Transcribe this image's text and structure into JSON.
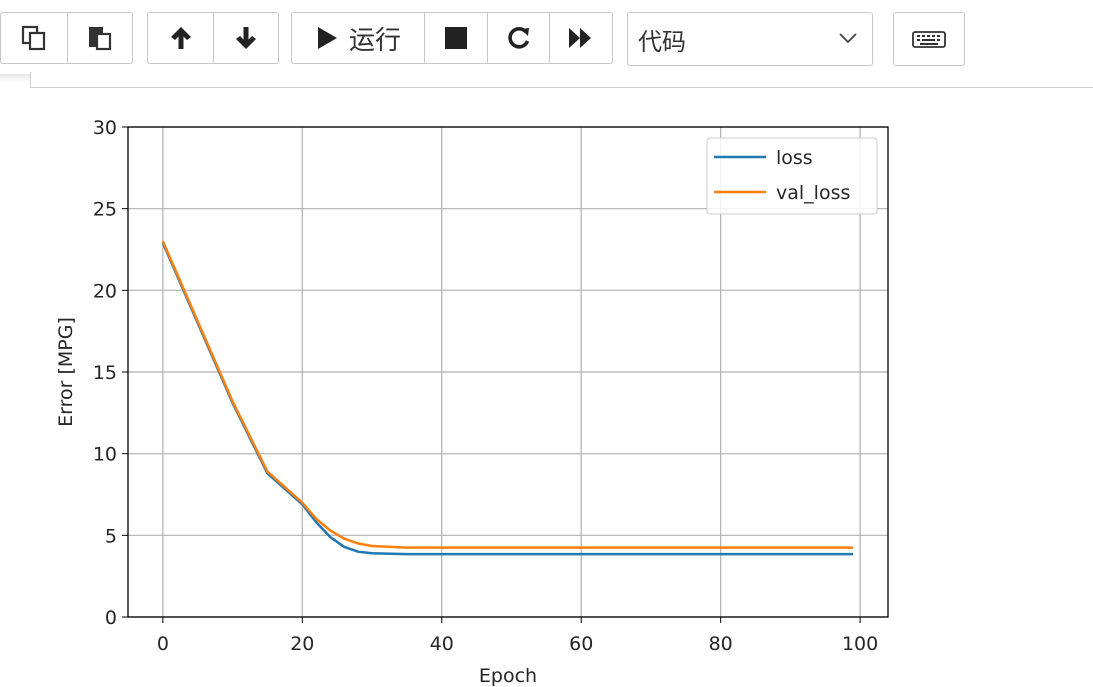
{
  "toolbar": {
    "copy_icon": "copy-icon",
    "paste_icon": "paste-icon",
    "up_icon": "arrow-up-icon",
    "down_icon": "arrow-down-icon",
    "run_icon": "play-icon",
    "run_label": "运行",
    "stop_icon": "stop-icon",
    "restart_icon": "restart-icon",
    "fast_forward_icon": "fast-forward-icon",
    "cell_type_value": "代码",
    "keyboard_icon": "keyboard-icon"
  },
  "chart_data": {
    "type": "line",
    "xlabel": "Epoch",
    "ylabel": "Error [MPG]",
    "xlim": [
      -5,
      104
    ],
    "ylim": [
      0,
      30
    ],
    "xticks": [
      0,
      20,
      40,
      60,
      80,
      100
    ],
    "yticks": [
      0,
      5,
      10,
      15,
      20,
      25,
      30
    ],
    "grid": true,
    "legend_position": "top-right",
    "x": [
      0,
      5,
      10,
      15,
      20,
      22,
      24,
      26,
      28,
      30,
      35,
      40,
      50,
      60,
      70,
      80,
      90,
      99
    ],
    "series": [
      {
        "name": "loss",
        "color": "#1f77b4",
        "values": [
          22.9,
          18.0,
          13.1,
          8.8,
          6.9,
          5.8,
          4.9,
          4.3,
          4.0,
          3.9,
          3.85,
          3.85,
          3.85,
          3.85,
          3.85,
          3.85,
          3.85,
          3.85
        ]
      },
      {
        "name": "val_loss",
        "color": "#ff7f0e",
        "values": [
          23.0,
          18.1,
          13.2,
          8.9,
          7.0,
          6.0,
          5.3,
          4.8,
          4.5,
          4.35,
          4.25,
          4.25,
          4.25,
          4.25,
          4.25,
          4.25,
          4.25,
          4.25
        ]
      }
    ]
  }
}
